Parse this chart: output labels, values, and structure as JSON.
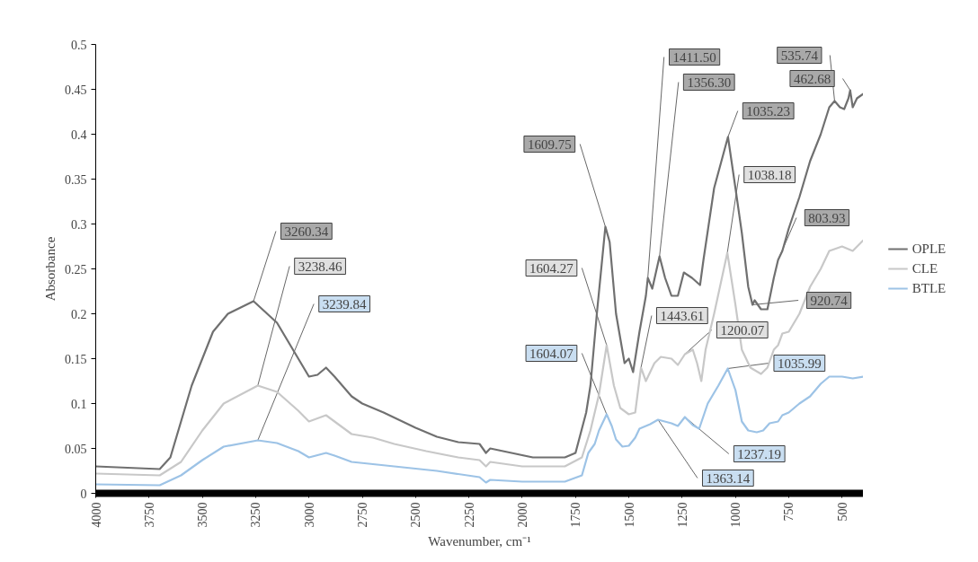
{
  "chart_data": {
    "type": "line",
    "xlabel": "Wavenumber, cm⁻¹",
    "ylabel": "Absorbance",
    "xlim": [
      4000,
      400
    ],
    "ylim": [
      0,
      0.5
    ],
    "xticks": [
      4000,
      3750,
      3500,
      3250,
      3000,
      2750,
      2500,
      2250,
      2000,
      1750,
      1500,
      1250,
      1000,
      750,
      500
    ],
    "yticks": [
      0,
      0.05,
      0.1,
      0.15,
      0.2,
      0.25,
      0.3,
      0.35,
      0.4,
      0.45,
      0.5
    ],
    "grid": false,
    "legend": "right",
    "marker": "none",
    "line_style": "solid",
    "series": [
      {
        "name": "OPLE",
        "color": "#707070",
        "x": [
          4000,
          3700,
          3650,
          3550,
          3450,
          3380,
          3260,
          3150,
          3050,
          3000,
          2960,
          2920,
          2880,
          2800,
          2750,
          2650,
          2500,
          2400,
          2300,
          2200,
          2170,
          2150,
          2050,
          1950,
          1800,
          1750,
          1700,
          1680,
          1650,
          1610,
          1590,
          1560,
          1520,
          1500,
          1480,
          1450,
          1420,
          1411,
          1390,
          1356,
          1330,
          1300,
          1270,
          1242,
          1204,
          1166,
          1150,
          1100,
          1035,
          1000,
          970,
          940,
          920,
          910,
          880,
          850,
          820,
          800,
          780,
          750,
          700,
          650,
          600,
          560,
          535,
          510,
          490,
          470,
          462,
          450,
          430,
          400
        ],
        "values": [
          0.03,
          0.027,
          0.04,
          0.12,
          0.18,
          0.2,
          0.214,
          0.19,
          0.15,
          0.13,
          0.132,
          0.14,
          0.13,
          0.108,
          0.1,
          0.09,
          0.073,
          0.063,
          0.057,
          0.055,
          0.045,
          0.05,
          0.045,
          0.04,
          0.04,
          0.045,
          0.09,
          0.12,
          0.2,
          0.297,
          0.28,
          0.2,
          0.145,
          0.15,
          0.135,
          0.18,
          0.22,
          0.24,
          0.228,
          0.264,
          0.24,
          0.22,
          0.22,
          0.246,
          0.24,
          0.232,
          0.26,
          0.34,
          0.397,
          0.34,
          0.29,
          0.23,
          0.21,
          0.215,
          0.205,
          0.205,
          0.24,
          0.26,
          0.27,
          0.295,
          0.33,
          0.37,
          0.4,
          0.43,
          0.437,
          0.43,
          0.428,
          0.44,
          0.449,
          0.43,
          0.44,
          0.445
        ]
      },
      {
        "name": "CLE",
        "color": "#c8c8c8",
        "x": [
          4000,
          3700,
          3600,
          3500,
          3400,
          3240,
          3150,
          3050,
          3000,
          2920,
          2880,
          2800,
          2700,
          2600,
          2450,
          2300,
          2200,
          2170,
          2150,
          2000,
          1800,
          1720,
          1680,
          1640,
          1604,
          1570,
          1540,
          1500,
          1470,
          1443,
          1420,
          1380,
          1350,
          1300,
          1270,
          1237,
          1200,
          1180,
          1160,
          1140,
          1100,
          1038,
          1000,
          970,
          930,
          880,
          850,
          820,
          800,
          780,
          750,
          700,
          650,
          600,
          560,
          500,
          450,
          400
        ],
        "values": [
          0.022,
          0.02,
          0.035,
          0.07,
          0.1,
          0.12,
          0.113,
          0.092,
          0.08,
          0.087,
          0.08,
          0.066,
          0.062,
          0.055,
          0.047,
          0.04,
          0.037,
          0.03,
          0.035,
          0.03,
          0.03,
          0.04,
          0.07,
          0.11,
          0.165,
          0.12,
          0.095,
          0.088,
          0.09,
          0.14,
          0.125,
          0.145,
          0.152,
          0.15,
          0.143,
          0.155,
          0.16,
          0.145,
          0.125,
          0.16,
          0.2,
          0.268,
          0.21,
          0.16,
          0.14,
          0.133,
          0.14,
          0.16,
          0.165,
          0.178,
          0.18,
          0.2,
          0.23,
          0.25,
          0.27,
          0.275,
          0.27,
          0.282
        ]
      },
      {
        "name": "BTLE",
        "color": "#9dc3e6",
        "x": [
          4000,
          3700,
          3600,
          3500,
          3400,
          3240,
          3150,
          3050,
          3000,
          2920,
          2880,
          2800,
          2600,
          2400,
          2200,
          2170,
          2150,
          2000,
          1800,
          1720,
          1690,
          1660,
          1640,
          1604,
          1580,
          1560,
          1530,
          1500,
          1470,
          1450,
          1400,
          1363,
          1300,
          1270,
          1237,
          1200,
          1170,
          1130,
          1080,
          1036,
          1000,
          970,
          940,
          900,
          870,
          840,
          800,
          780,
          750,
          700,
          650,
          600,
          560,
          500,
          450,
          400
        ],
        "values": [
          0.01,
          0.009,
          0.02,
          0.037,
          0.052,
          0.059,
          0.056,
          0.047,
          0.04,
          0.045,
          0.042,
          0.035,
          0.03,
          0.025,
          0.018,
          0.012,
          0.015,
          0.013,
          0.013,
          0.02,
          0.045,
          0.055,
          0.07,
          0.088,
          0.075,
          0.06,
          0.052,
          0.053,
          0.062,
          0.072,
          0.077,
          0.082,
          0.078,
          0.075,
          0.085,
          0.076,
          0.072,
          0.1,
          0.12,
          0.139,
          0.115,
          0.08,
          0.07,
          0.068,
          0.07,
          0.078,
          0.08,
          0.087,
          0.09,
          0.1,
          0.108,
          0.122,
          0.13,
          0.13,
          0.128,
          0.13
        ]
      }
    ],
    "annotations": [
      {
        "text": "3260.34",
        "x": 3260,
        "y": 0.214
      },
      {
        "text": "3238.46",
        "x": 3240,
        "y": 0.12
      },
      {
        "text": "3239.84",
        "x": 3240,
        "y": 0.059
      },
      {
        "text": "1609.75",
        "x": 1610,
        "y": 0.297
      },
      {
        "text": "1604.27",
        "x": 1604,
        "y": 0.165
      },
      {
        "text": "1604.07",
        "x": 1604,
        "y": 0.088
      },
      {
        "text": "1411.50",
        "x": 1411,
        "y": 0.24
      },
      {
        "text": "1356.30",
        "x": 1356,
        "y": 0.264
      },
      {
        "text": "1035.23",
        "x": 1035,
        "y": 0.397
      },
      {
        "text": "1038.18",
        "x": 1038,
        "y": 0.268
      },
      {
        "text": "803.93",
        "x": 800,
        "y": 0.26
      },
      {
        "text": "920.74",
        "x": 920,
        "y": 0.21
      },
      {
        "text": "1443.61",
        "x": 1443,
        "y": 0.14
      },
      {
        "text": "1200.07",
        "x": 1237,
        "y": 0.155
      },
      {
        "text": "1035.99",
        "x": 1036,
        "y": 0.139
      },
      {
        "text": "1237.19",
        "x": 1237,
        "y": 0.085
      },
      {
        "text": "1363.14",
        "x": 1363,
        "y": 0.082
      },
      {
        "text": "535.74",
        "x": 535,
        "y": 0.437
      },
      {
        "text": "462.68",
        "x": 462,
        "y": 0.449
      }
    ]
  }
}
